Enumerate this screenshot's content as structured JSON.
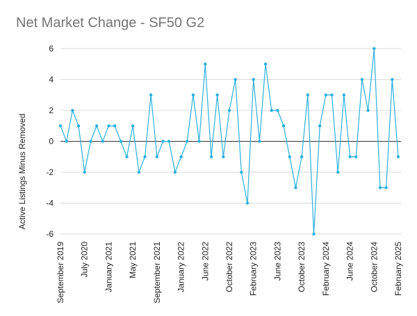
{
  "chart_data": {
    "type": "line",
    "title": "Net Market Change - SF50 G2",
    "xlabel": "",
    "ylabel": "Active Listings Minus Removed",
    "ylim": [
      -6,
      6
    ],
    "yticks": [
      -6,
      -4,
      -2,
      0,
      2,
      4,
      6
    ],
    "grid": true,
    "legend": "none",
    "colors": {
      "line": "#2ab0dc",
      "grid": "#d9d9d9",
      "zero": "#333333"
    },
    "x_tick_labels": [
      "September 2019",
      "July 2020",
      "January 2021",
      "May 2021",
      "September 2021",
      "January 2022",
      "June 2022",
      "October 2022",
      "February 2023",
      "June 2023",
      "October 2023",
      "February 2024",
      "June 2024",
      "October 2024",
      "February 2025"
    ],
    "x_tick_index": [
      0,
      4,
      8,
      12,
      16,
      20,
      24,
      28,
      32,
      36,
      40,
      44,
      48,
      52,
      56
    ],
    "series": [
      {
        "values": [
          1,
          0,
          2,
          1,
          -2,
          0,
          1,
          0,
          1,
          1,
          0,
          -1,
          1,
          -2,
          -1,
          3,
          -1,
          0,
          0,
          -2,
          -1,
          0,
          3,
          0,
          5,
          -1,
          3,
          -1,
          2,
          4,
          -2,
          -4,
          4,
          0,
          5,
          2,
          2,
          1,
          -1,
          -3,
          -1,
          3,
          -6,
          1,
          3,
          3,
          -2,
          3,
          -1,
          -1,
          4,
          2,
          6,
          -3,
          -3,
          4,
          -1
        ]
      }
    ]
  }
}
